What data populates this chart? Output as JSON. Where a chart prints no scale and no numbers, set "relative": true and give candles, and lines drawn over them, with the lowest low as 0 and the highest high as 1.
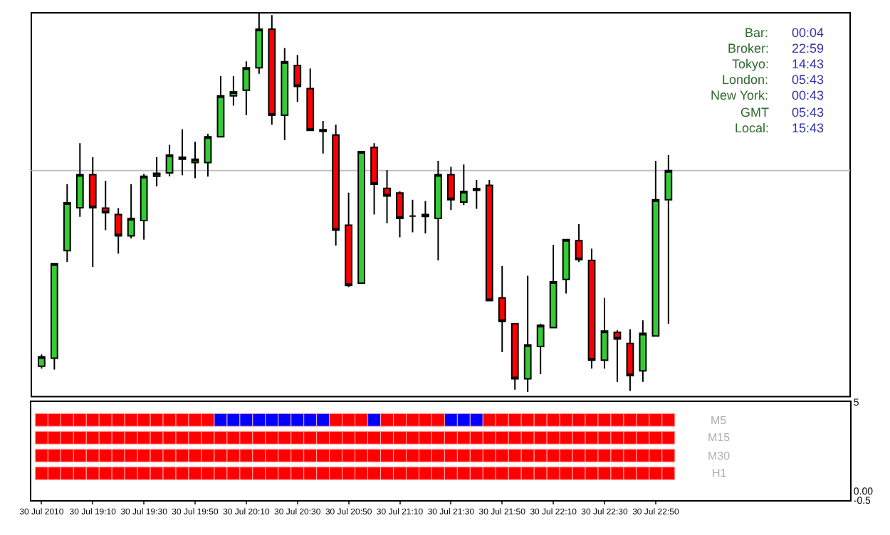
{
  "chart_data": [
    {
      "type": "candlestick",
      "relative": true,
      "x": [
        "2010-07-30T18:50",
        "2010-07-30T18:55",
        "2010-07-30T19:00",
        "2010-07-30T19:05",
        "2010-07-30T19:10",
        "2010-07-30T19:15",
        "2010-07-30T19:20",
        "2010-07-30T19:25",
        "2010-07-30T19:30",
        "2010-07-30T19:35",
        "2010-07-30T19:40",
        "2010-07-30T19:45",
        "2010-07-30T19:50",
        "2010-07-30T19:55",
        "2010-07-30T20:00",
        "2010-07-30T20:05",
        "2010-07-30T20:10",
        "2010-07-30T20:15",
        "2010-07-30T20:20",
        "2010-07-30T20:25",
        "2010-07-30T20:30",
        "2010-07-30T20:35",
        "2010-07-30T20:40",
        "2010-07-30T20:45",
        "2010-07-30T20:50",
        "2010-07-30T20:55",
        "2010-07-30T21:00",
        "2010-07-30T21:05",
        "2010-07-30T21:10",
        "2010-07-30T21:15",
        "2010-07-30T21:20",
        "2010-07-30T21:25",
        "2010-07-30T21:30",
        "2010-07-30T21:35",
        "2010-07-30T21:40",
        "2010-07-30T21:45",
        "2010-07-30T21:50",
        "2010-07-30T21:55",
        "2010-07-30T22:00",
        "2010-07-30T22:05",
        "2010-07-30T22:10",
        "2010-07-30T22:15",
        "2010-07-30T22:20",
        "2010-07-30T22:25",
        "2010-07-30T22:30",
        "2010-07-30T22:35",
        "2010-07-30T22:40",
        "2010-07-30T22:45",
        "2010-07-30T22:50",
        "2010-07-30T22:55"
      ],
      "xlim": [
        "2010-07-30T18:46",
        "2010-07-31T00:06"
      ],
      "ohlc": [
        [
          0.068,
          0.099,
          0.062,
          0.093
        ],
        [
          0.089,
          0.338,
          0.059,
          0.338
        ],
        [
          0.373,
          0.548,
          0.343,
          0.499
        ],
        [
          0.486,
          0.656,
          0.462,
          0.573
        ],
        [
          0.573,
          0.619,
          0.33,
          0.486
        ],
        [
          0.485,
          0.557,
          0.427,
          0.473
        ],
        [
          0.468,
          0.485,
          0.365,
          0.412
        ],
        [
          0.412,
          0.548,
          0.405,
          0.458
        ],
        [
          0.452,
          0.575,
          0.402,
          0.569
        ],
        [
          0.569,
          0.619,
          0.542,
          0.577
        ],
        [
          0.578,
          0.652,
          0.569,
          0.625
        ],
        [
          0.619,
          0.693,
          0.572,
          0.614
        ],
        [
          0.605,
          0.66,
          0.564,
          0.614
        ],
        [
          0.605,
          0.681,
          0.568,
          0.673
        ],
        [
          0.673,
          0.833,
          0.673,
          0.781
        ],
        [
          0.781,
          0.833,
          0.755,
          0.792
        ],
        [
          0.796,
          0.872,
          0.73,
          0.855
        ],
        [
          0.855,
          1.0,
          0.839,
          0.957
        ],
        [
          0.957,
          0.994,
          0.705,
          0.73
        ],
        [
          0.73,
          0.907,
          0.664,
          0.871
        ],
        [
          0.861,
          0.889,
          0.765,
          0.806
        ],
        [
          0.8,
          0.853,
          0.69,
          0.69
        ],
        [
          0.692,
          0.715,
          0.629,
          0.687
        ],
        [
          0.678,
          0.705,
          0.386,
          0.427
        ],
        [
          0.44,
          0.526,
          0.277,
          0.281
        ],
        [
          0.287,
          0.634,
          0.287,
          0.634
        ],
        [
          0.645,
          0.656,
          0.468,
          0.548
        ],
        [
          0.537,
          0.585,
          0.445,
          0.517
        ],
        [
          0.525,
          0.529,
          0.408,
          0.458
        ],
        [
          0.464,
          0.507,
          0.421,
          0.464
        ],
        [
          0.468,
          0.504,
          0.418,
          0.463
        ],
        [
          0.458,
          0.61,
          0.347,
          0.573
        ],
        [
          0.573,
          0.594,
          0.48,
          0.507
        ],
        [
          0.501,
          0.6,
          0.493,
          0.529
        ],
        [
          0.536,
          0.559,
          0.483,
          0.532
        ],
        [
          0.545,
          0.559,
          0.241,
          0.241
        ],
        [
          0.248,
          0.332,
          0.105,
          0.186
        ],
        [
          0.18,
          0.18,
          0.006,
          0.035
        ],
        [
          0.035,
          0.307,
          0.0,
          0.124
        ],
        [
          0.12,
          0.18,
          0.047,
          0.176
        ],
        [
          0.17,
          0.388,
          0.17,
          0.291
        ],
        [
          0.297,
          0.402,
          0.26,
          0.402
        ],
        [
          0.399,
          0.443,
          0.343,
          0.349
        ],
        [
          0.347,
          0.378,
          0.062,
          0.084
        ],
        [
          0.084,
          0.248,
          0.062,
          0.161
        ],
        [
          0.157,
          0.163,
          0.027,
          0.14
        ],
        [
          0.128,
          0.165,
          0.003,
          0.043
        ],
        [
          0.056,
          0.189,
          0.027,
          0.155
        ],
        [
          0.148,
          0.61,
          0.148,
          0.507
        ],
        [
          0.507,
          0.625,
          0.18,
          0.584
        ]
      ],
      "ref_lines": [
        {
          "axis": "y",
          "value": 0.584,
          "color": "#c0c0c0"
        }
      ],
      "annotations": [
        "Bar:",
        "00:04",
        "Broker:",
        "22:59",
        "Tokyo:",
        "14:43",
        "London:",
        "05:43",
        "New York:",
        "00:43",
        "GMT",
        "05:43",
        "Local:",
        "15:43"
      ]
    },
    {
      "type": "scatter",
      "marker": "square",
      "x": [
        "2010-07-30T18:50",
        "2010-07-30T18:55",
        "2010-07-30T19:00",
        "2010-07-30T19:05",
        "2010-07-30T19:10",
        "2010-07-30T19:15",
        "2010-07-30T19:20",
        "2010-07-30T19:25",
        "2010-07-30T19:30",
        "2010-07-30T19:35",
        "2010-07-30T19:40",
        "2010-07-30T19:45",
        "2010-07-30T19:50",
        "2010-07-30T19:55",
        "2010-07-30T20:00",
        "2010-07-30T20:05",
        "2010-07-30T20:10",
        "2010-07-30T20:15",
        "2010-07-30T20:20",
        "2010-07-30T20:25",
        "2010-07-30T20:30",
        "2010-07-30T20:35",
        "2010-07-30T20:40",
        "2010-07-30T20:45",
        "2010-07-30T20:50",
        "2010-07-30T20:55",
        "2010-07-30T21:00",
        "2010-07-30T21:05",
        "2010-07-30T21:10",
        "2010-07-30T21:15",
        "2010-07-30T21:20",
        "2010-07-30T21:25",
        "2010-07-30T21:30",
        "2010-07-30T21:35",
        "2010-07-30T21:40",
        "2010-07-30T21:45",
        "2010-07-30T21:50",
        "2010-07-30T21:55",
        "2010-07-30T22:00",
        "2010-07-30T22:05",
        "2010-07-30T22:10",
        "2010-07-30T22:15",
        "2010-07-30T22:20",
        "2010-07-30T22:25",
        "2010-07-30T22:30",
        "2010-07-30T22:35",
        "2010-07-30T22:40",
        "2010-07-30T22:45",
        "2010-07-30T22:50",
        "2010-07-30T22:55"
      ],
      "xlim": [
        "2010-07-30T18:46",
        "2010-07-31T00:06"
      ],
      "xticks": [
        {
          "value": "2010-07-30T18:50",
          "label": "30 Jul 2010"
        },
        {
          "value": "2010-07-30T19:10",
          "label": "30 Jul 19:10"
        },
        {
          "value": "2010-07-30T19:30",
          "label": "30 Jul 19:30"
        },
        {
          "value": "2010-07-30T19:50",
          "label": "30 Jul 19:50"
        },
        {
          "value": "2010-07-30T20:10",
          "label": "30 Jul 20:10"
        },
        {
          "value": "2010-07-30T20:30",
          "label": "30 Jul 20:30"
        },
        {
          "value": "2010-07-30T20:50",
          "label": "30 Jul 20:50"
        },
        {
          "value": "2010-07-30T21:10",
          "label": "30 Jul 21:10"
        },
        {
          "value": "2010-07-30T21:30",
          "label": "30 Jul 21:30"
        },
        {
          "value": "2010-07-30T21:50",
          "label": "30 Jul 21:50"
        },
        {
          "value": "2010-07-30T22:10",
          "label": "30 Jul 22:10"
        },
        {
          "value": "2010-07-30T22:30",
          "label": "30 Jul 22:30"
        },
        {
          "value": "2010-07-30T22:50",
          "label": "30 Jul 22:50"
        }
      ],
      "ylim": [
        -0.5,
        5
      ],
      "yticks": [
        5,
        {
          "value": 0,
          "label": "0.00"
        },
        -0.5
      ],
      "series": [
        {
          "name": "M5",
          "values": [
            4,
            4,
            4,
            4,
            4,
            4,
            4,
            4,
            4,
            4,
            4,
            4,
            4,
            4,
            4,
            4,
            4,
            4,
            4,
            4,
            4,
            4,
            4,
            4,
            4,
            4,
            4,
            4,
            4,
            4,
            4,
            4,
            4,
            4,
            4,
            4,
            4,
            4,
            4,
            4,
            4,
            4,
            4,
            4,
            4,
            4,
            4,
            4,
            4,
            4
          ],
          "colors": [
            "#ff0000",
            "#ff0000",
            "#ff0000",
            "#ff0000",
            "#ff0000",
            "#ff0000",
            "#ff0000",
            "#ff0000",
            "#ff0000",
            "#ff0000",
            "#ff0000",
            "#ff0000",
            "#ff0000",
            "#ff0000",
            "#0000ff",
            "#0000ff",
            "#0000ff",
            "#0000ff",
            "#0000ff",
            "#0000ff",
            "#0000ff",
            "#0000ff",
            "#0000ff",
            "#ff0000",
            "#ff0000",
            "#ff0000",
            "#0000ff",
            "#ff0000",
            "#ff0000",
            "#ff0000",
            "#ff0000",
            "#ff0000",
            "#0000ff",
            "#0000ff",
            "#0000ff",
            "#ff0000",
            "#ff0000",
            "#ff0000",
            "#ff0000",
            "#ff0000",
            "#ff0000",
            "#ff0000",
            "#ff0000",
            "#ff0000",
            "#ff0000",
            "#ff0000",
            "#ff0000",
            "#ff0000",
            "#ff0000",
            "#ff0000"
          ]
        },
        {
          "name": "M15",
          "color": "#ff0000",
          "values": [
            3,
            3,
            3,
            3,
            3,
            3,
            3,
            3,
            3,
            3,
            3,
            3,
            3,
            3,
            3,
            3,
            3,
            3,
            3,
            3,
            3,
            3,
            3,
            3,
            3,
            3,
            3,
            3,
            3,
            3,
            3,
            3,
            3,
            3,
            3,
            3,
            3,
            3,
            3,
            3,
            3,
            3,
            3,
            3,
            3,
            3,
            3,
            3,
            3,
            3
          ]
        },
        {
          "name": "M30",
          "color": "#ff0000",
          "values": [
            2,
            2,
            2,
            2,
            2,
            2,
            2,
            2,
            2,
            2,
            2,
            2,
            2,
            2,
            2,
            2,
            2,
            2,
            2,
            2,
            2,
            2,
            2,
            2,
            2,
            2,
            2,
            2,
            2,
            2,
            2,
            2,
            2,
            2,
            2,
            2,
            2,
            2,
            2,
            2,
            2,
            2,
            2,
            2,
            2,
            2,
            2,
            2,
            2,
            2
          ]
        },
        {
          "name": "H1",
          "color": "#ff0000",
          "values": [
            1,
            1,
            1,
            1,
            1,
            1,
            1,
            1,
            1,
            1,
            1,
            1,
            1,
            1,
            1,
            1,
            1,
            1,
            1,
            1,
            1,
            1,
            1,
            1,
            1,
            1,
            1,
            1,
            1,
            1,
            1,
            1,
            1,
            1,
            1,
            1,
            1,
            1,
            1,
            1,
            1,
            1,
            1,
            1,
            1,
            1,
            1,
            1,
            1,
            1
          ]
        }
      ]
    }
  ]
}
